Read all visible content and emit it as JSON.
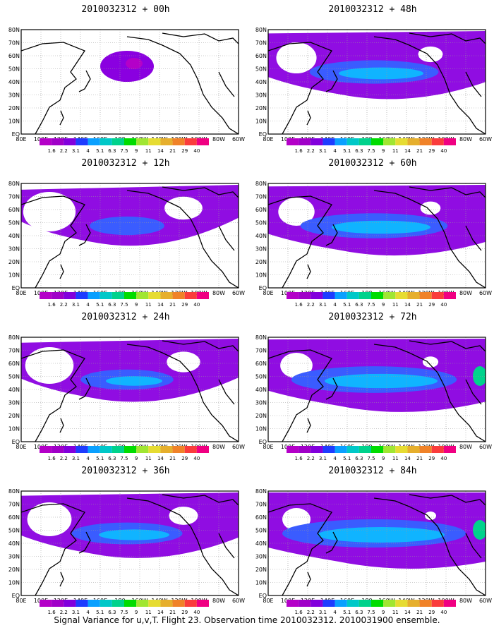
{
  "panels": [
    {
      "title": "2010032312 + 00h",
      "level": 0
    },
    {
      "title": "2010032312 + 12h",
      "level": 1
    },
    {
      "title": "2010032312 + 24h",
      "level": 2
    },
    {
      "title": "2010032312 + 36h",
      "level": 3
    },
    {
      "title": "2010032312 + 48h",
      "level": 4
    },
    {
      "title": "2010032312 + 60h",
      "level": 5
    },
    {
      "title": "2010032312 + 72h",
      "level": 6
    },
    {
      "title": "2010032312 + 84h",
      "level": 7
    }
  ],
  "lat_labels": [
    "80N",
    "70N",
    "60N",
    "50N",
    "40N",
    "30N",
    "20N",
    "10N",
    "EQ"
  ],
  "lon_labels": [
    "80E",
    "100E",
    "120E",
    "140E",
    "160E",
    "180",
    "160W",
    "140W",
    "120W",
    "100W",
    "80W",
    "60W"
  ],
  "colorbar": {
    "labels": [
      "1.6",
      "2.2",
      "3.1",
      "4",
      "5.1",
      "6.3",
      "7.5",
      "9",
      "11",
      "14",
      "21",
      "29",
      "40"
    ],
    "colors": [
      "#a000c8",
      "#8200dc",
      "#1e3cff",
      "#0aa0ff",
      "#00c8c8",
      "#00d28c",
      "#00dc00",
      "#a0e632",
      "#e6dc32",
      "#e6af2d",
      "#f08228",
      "#fa3c3c",
      "#f00082"
    ]
  },
  "footer": "Signal Variance for u,v,T. Flight 23. Observation time 2010032312. 2010031900 ensemble."
}
